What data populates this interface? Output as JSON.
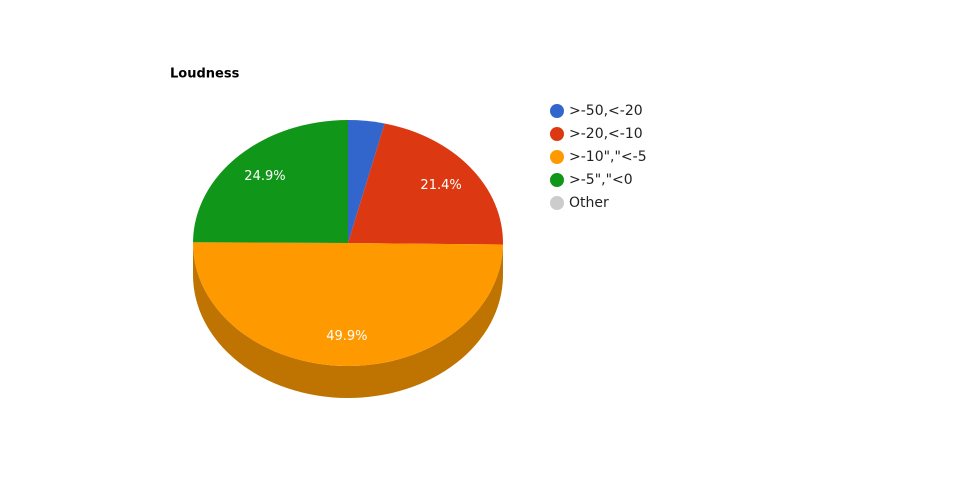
{
  "chart_data": {
    "type": "pie3d",
    "title": "Loudness",
    "categories": [
      ">-50,<-20",
      ">-20,<-10",
      ">-10\",\"<-5",
      ">-5\",\"<0",
      "Other"
    ],
    "values": [
      3.8,
      21.4,
      49.9,
      24.9,
      0
    ],
    "value_labels": [
      null,
      "21.4%",
      "49.9%",
      "24.9%",
      null
    ],
    "colors": [
      "#3366cc",
      "#dc3912",
      "#ff9900",
      "#109618",
      "#cccccc"
    ],
    "legend": "right"
  }
}
